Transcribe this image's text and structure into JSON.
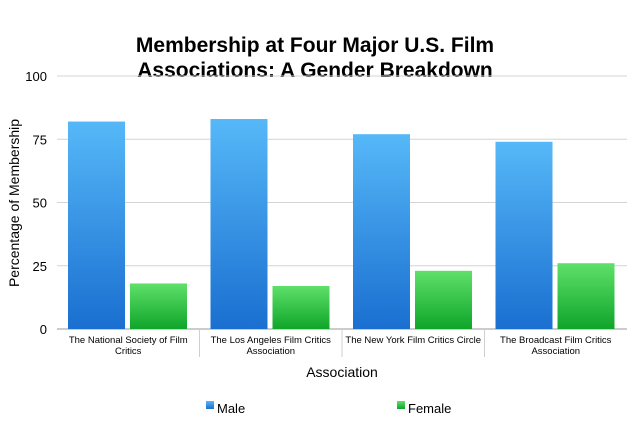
{
  "chart_data": {
    "type": "bar",
    "title_lines": [
      "Membership at Four Major U.S. Film",
      "Associations: A Gender Breakdown"
    ],
    "xlabel": "Association",
    "ylabel": "Percentage of Membership",
    "categories": [
      [
        "The National Society of Film",
        "Critics"
      ],
      [
        "The Los Angeles Film Critics",
        "Association"
      ],
      [
        "The New York Film Critics Circle"
      ],
      [
        "The Broadcast Film Critics",
        "Association"
      ]
    ],
    "series": [
      {
        "name": "Male",
        "values": [
          82,
          83,
          77,
          74
        ]
      },
      {
        "name": "Female",
        "values": [
          18,
          17,
          23,
          26
        ]
      }
    ],
    "ylim": [
      0,
      100
    ],
    "yticks": [
      "0",
      "25",
      "50",
      "75",
      "100"
    ],
    "grid": "horizontal",
    "legend_position": "bottom",
    "colors": {
      "Male": "#2f8ee6",
      "Female": "#27c03a"
    }
  }
}
